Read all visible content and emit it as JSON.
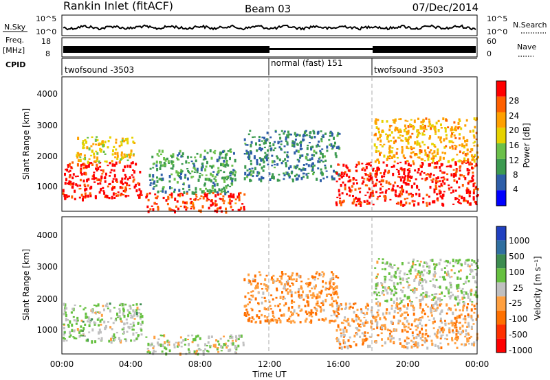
{
  "header": {
    "station": "Rankin Inlet (fitACF)",
    "beam": "Beam 03",
    "date": "07/Dec/2014"
  },
  "strip_labels": {
    "nsky": "N.Sky",
    "nsearch": "N.Search",
    "freq": "Freq.",
    "freq_unit": "[MHz]",
    "nave": "Nave",
    "cpid": "CPID",
    "nsky_ticks": [
      "10^5",
      "10^0"
    ],
    "nsearch_ticks": [
      "10^5",
      "10^0"
    ],
    "freq_ticks": [
      "18",
      "8"
    ],
    "nave_ticks": [
      "60",
      "0"
    ]
  },
  "cpid_segments": [
    {
      "label": "twofsound -3503",
      "start_h": 0,
      "end_h": 12
    },
    {
      "label": "normal (fast) 151",
      "start_h": 12,
      "end_h": 18
    },
    {
      "label": "twofsound -3503",
      "start_h": 18,
      "end_h": 24
    }
  ],
  "power_panel": {
    "ylabel": "Slant Range [km]",
    "yticks": [
      "1000",
      "2000",
      "3000",
      "4000"
    ],
    "colorbar_label": "Power [dB]",
    "colorbar_ticks": [
      "28",
      "24",
      "20",
      "16",
      "12",
      "8",
      "4"
    ],
    "colors": [
      "#0000ff",
      "#2e5ea8",
      "#3c9a50",
      "#6bc04a",
      "#e6d200",
      "#ffa000",
      "#ff6000",
      "#ff0000"
    ]
  },
  "velocity_panel": {
    "ylabel": "Slant Range [km]",
    "yticks": [
      "1000",
      "2000",
      "3000",
      "4000"
    ],
    "colorbar_label": "Velocity [m s⁻¹]",
    "colorbar_ticks": [
      "1000",
      "500",
      "100",
      "25",
      "-25",
      "-100",
      "-500",
      "-1000"
    ],
    "colors": [
      "#2040c0",
      "#2f6fa0",
      "#3c8c50",
      "#66c040",
      "#c0c0c0",
      "#ffa040",
      "#ff7000",
      "#ff3000",
      "#ff0000"
    ]
  },
  "xaxis": {
    "label": "Time UT",
    "ticks": [
      "00:00",
      "04:00",
      "08:00",
      "12:00",
      "16:00",
      "20:00",
      "00:00"
    ]
  },
  "chart_data": {
    "type": "heatmap",
    "title": "Rankin Inlet (fitACF)",
    "x_range_hours": [
      0,
      24
    ],
    "y_range_km": [
      180,
      4500
    ],
    "panels": [
      {
        "name": "Power",
        "unit": "dB",
        "clim": [
          0,
          30
        ],
        "regions": [
          {
            "t0": 0.0,
            "t1": 4.6,
            "r0": 600,
            "r1": 1800,
            "value": 28
          },
          {
            "t0": 0.8,
            "t1": 4.2,
            "r0": 1800,
            "r1": 2600,
            "value": 18
          },
          {
            "t0": 4.8,
            "t1": 10.5,
            "r0": 200,
            "r1": 800,
            "value": 26
          },
          {
            "t0": 5.0,
            "t1": 10.0,
            "r0": 800,
            "r1": 2200,
            "value": 10
          },
          {
            "t0": 10.5,
            "t1": 16.0,
            "r0": 1200,
            "r1": 2800,
            "value": 8
          },
          {
            "t0": 15.8,
            "t1": 24.0,
            "r0": 400,
            "r1": 1800,
            "value": 28
          },
          {
            "t0": 18.0,
            "t1": 24.0,
            "r0": 1800,
            "r1": 3200,
            "value": 20
          }
        ]
      },
      {
        "name": "Velocity",
        "unit": "m s-1",
        "clim": [
          -1000,
          1000
        ],
        "regions": [
          {
            "t0": 0.0,
            "t1": 4.6,
            "r0": 600,
            "r1": 1800,
            "value": 100
          },
          {
            "t0": 4.8,
            "t1": 10.5,
            "r0": 200,
            "r1": 800,
            "value": 50
          },
          {
            "t0": 10.5,
            "t1": 16.0,
            "r0": 1200,
            "r1": 2800,
            "value": -300
          },
          {
            "t0": 15.8,
            "t1": 24.0,
            "r0": 400,
            "r1": 1800,
            "value": -200
          },
          {
            "t0": 18.0,
            "t1": 24.0,
            "r0": 1800,
            "r1": 3200,
            "value": 80
          }
        ]
      }
    ]
  }
}
